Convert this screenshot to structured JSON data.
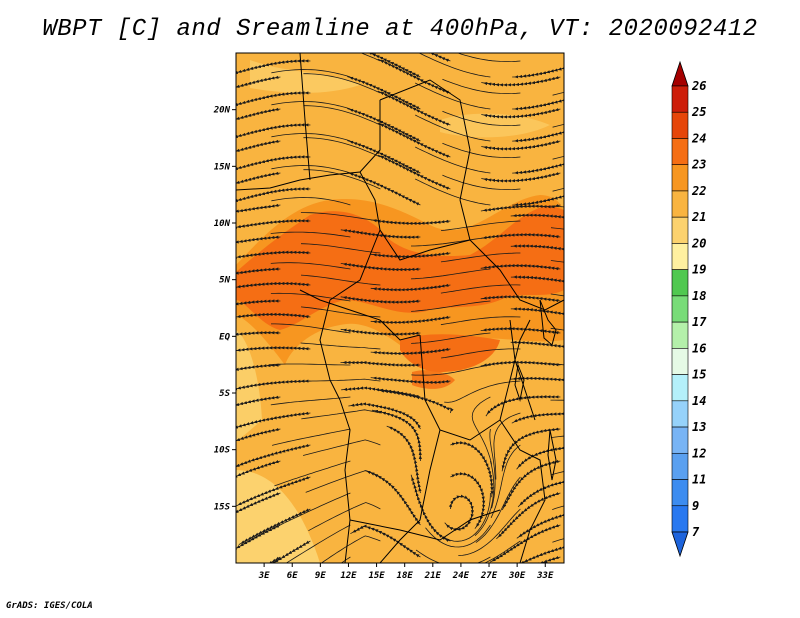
{
  "title": "WBPT [C] and Sreamline at 400hPa, VT: 2020092412",
  "footer": "GrADS: IGES/COLA",
  "map": {
    "variable": "Wet-bulb potential temperature",
    "units": "C",
    "level": "400hPa",
    "valid_time": "2020092412",
    "lon_range": [
      0,
      35
    ],
    "lat_range": [
      -20,
      25
    ],
    "x_ticks": [
      {
        "lon": 3,
        "label": "3E"
      },
      {
        "lon": 6,
        "label": "6E"
      },
      {
        "lon": 9,
        "label": "9E"
      },
      {
        "lon": 12,
        "label": "12E"
      },
      {
        "lon": 15,
        "label": "15E"
      },
      {
        "lon": 18,
        "label": "18E"
      },
      {
        "lon": 21,
        "label": "21E"
      },
      {
        "lon": 24,
        "label": "24E"
      },
      {
        "lon": 27,
        "label": "27E"
      },
      {
        "lon": 30,
        "label": "30E"
      },
      {
        "lon": 33,
        "label": "33E"
      }
    ],
    "y_ticks": [
      {
        "lat": 20,
        "label": "20N"
      },
      {
        "lat": 15,
        "label": "15N"
      },
      {
        "lat": 10,
        "label": "10N"
      },
      {
        "lat": 5,
        "label": "5N"
      },
      {
        "lat": 0,
        "label": "EQ"
      },
      {
        "lat": -5,
        "label": "5S"
      },
      {
        "lat": -10,
        "label": "10S"
      },
      {
        "lat": -15,
        "label": "15S"
      }
    ]
  },
  "colorbar": {
    "levels": [
      "7",
      "9",
      "11",
      "12",
      "13",
      "14",
      "15",
      "16",
      "17",
      "18",
      "19",
      "20",
      "21",
      "22",
      "23",
      "24",
      "25",
      "26"
    ],
    "colors": [
      "#1e64dc",
      "#2878f0",
      "#3c8cf0",
      "#5aa0f0",
      "#78b4f5",
      "#96d2fa",
      "#b4f0fa",
      "#e6fae6",
      "#b4f0aa",
      "#78dc78",
      "#50c850",
      "#fff0a0",
      "#fcd26e",
      "#f9b440",
      "#f79620",
      "#f56e14",
      "#e6460a",
      "#cd1e0a",
      "#a50000"
    ]
  },
  "colors": {
    "field_base": "#f9b440",
    "field_warm": "#f56e14",
    "field_warmer": "#f79620",
    "field_light": "#fcd26e",
    "streamline": "#1a1a1a"
  }
}
